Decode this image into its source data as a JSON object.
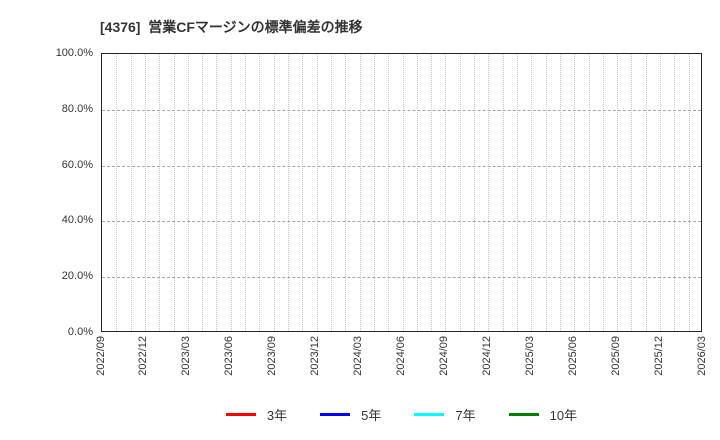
{
  "page": {
    "background": "#ffffff"
  },
  "chart_data": {
    "type": "line",
    "title": "[4376]  営業CFマージンの標準偏差の推移",
    "title_color": "#333333",
    "x_tick_labels": [
      "2022/09",
      "2022/12",
      "2023/03",
      "2023/06",
      "2023/09",
      "2023/12",
      "2024/03",
      "2024/06",
      "2024/09",
      "2024/12",
      "2025/03",
      "2025/06",
      "2025/09",
      "2025/12",
      "2026/03"
    ],
    "x_minor_intervals_per_major": 3,
    "y_ticks": [
      0,
      20,
      40,
      60,
      80,
      100
    ],
    "y_tick_labels": [
      "0.0%",
      "20.0%",
      "40.0%",
      "60.0%",
      "80.0%",
      "100.0%"
    ],
    "ylim": [
      0,
      100
    ],
    "grid": {
      "show": true,
      "vertical_style": "dotted",
      "vertical_color": "#c9c9c9",
      "horizontal_style": "dashed",
      "horizontal_color": "#a6a6a6"
    },
    "legend_position": "bottom",
    "series": [
      {
        "name": "3年",
        "color": "#ff0000",
        "values": []
      },
      {
        "name": "5年",
        "color": "#0000ff",
        "values": []
      },
      {
        "name": "7年",
        "color": "#00ffff",
        "values": []
      },
      {
        "name": "10年",
        "color": "#008000",
        "values": []
      }
    ],
    "has_plotted_data": false
  }
}
